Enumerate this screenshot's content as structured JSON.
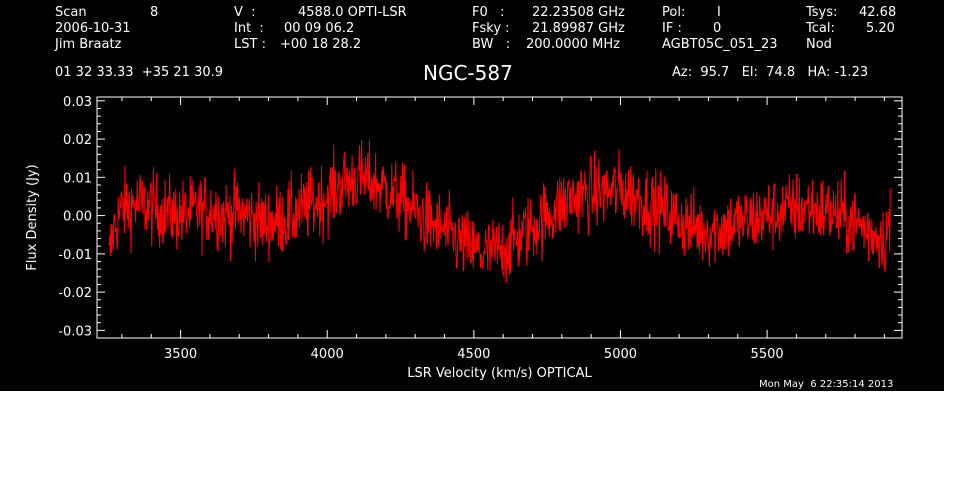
{
  "header": {
    "col1": {
      "scan_label": "Scan",
      "scan_value": "8",
      "date": "2006-10-31",
      "observer": "Jim Braatz"
    },
    "col2": {
      "v_label": "V  :",
      "v_value": "4588.0 OPTI-LSR",
      "int_label": "Int  :",
      "int_value": "00 09 06.2",
      "lst_label": "LST :",
      "lst_value": "+00 18 28.2"
    },
    "col3": {
      "f0_label": "F0   :",
      "f0_value": "22.23508 GHz",
      "fsky_label": "Fsky :",
      "fsky_value": "21.89987 GHz",
      "bw_label": "BW   :",
      "bw_value": "200.0000 MHz"
    },
    "col4": {
      "pol_label": "Pol:",
      "pol_value": "I",
      "if_label": "IF :",
      "if_value": "0",
      "project": "AGBT05C_051_23"
    },
    "col5": {
      "tsys_label": "Tsys:",
      "tsys_value": "42.68",
      "tcal_label": "Tcal:",
      "tcal_value": "5.20",
      "mode": "Nod"
    },
    "coords": "01 32 33.33  +35 21 30.9",
    "object": "NGC-587",
    "pointing": "Az:  95.7   El:  74.8   HA: -1.23"
  },
  "footer": {
    "timestamp": "Mon May  6 22:35:14 2013"
  },
  "colors": {
    "background": "#000000",
    "axes": "#ffffff",
    "trace": "#ff0000"
  },
  "chart_data": {
    "type": "line",
    "xlabel": "LSR Velocity (km/s) OPTICAL",
    "ylabel": "Flux Density (Jy)",
    "xlim": [
      3215,
      5960
    ],
    "ylim": [
      -0.032,
      0.031
    ],
    "xticks": [
      3500,
      4000,
      4500,
      5000,
      5500
    ],
    "yticks": [
      -0.03,
      -0.02,
      -0.01,
      0.0,
      0.01,
      0.02,
      0.03
    ],
    "ytick_labels": [
      "-0.03",
      "-0.02",
      "-0.01",
      "0.00",
      "0.01",
      "0.02",
      "0.03"
    ],
    "series": [
      {
        "x": [
          3255,
          3270,
          3300,
          3350,
          3400,
          3450,
          3500,
          3550,
          3600,
          3650,
          3700,
          3750,
          3800,
          3850,
          3900,
          3950,
          4000,
          4050,
          4100,
          4150,
          4200,
          4250,
          4300,
          4350,
          4400,
          4450,
          4500,
          4550,
          4600,
          4650,
          4700,
          4750,
          4800,
          4850,
          4900,
          4950,
          5000,
          5050,
          5100,
          5150,
          5200,
          5250,
          5300,
          5350,
          5400,
          5450,
          5500,
          5550,
          5600,
          5650,
          5700,
          5750,
          5800,
          5850,
          5900,
          5920
        ],
        "y": [
          -0.012,
          -0.004,
          0.002,
          0.003,
          0.002,
          0.001,
          0.0,
          0.001,
          0.002,
          0.0,
          0.001,
          -0.001,
          -0.002,
          -0.001,
          0.001,
          0.003,
          0.005,
          0.008,
          0.01,
          0.009,
          0.007,
          0.004,
          0.001,
          -0.002,
          -0.004,
          -0.007,
          -0.009,
          -0.01,
          -0.009,
          -0.006,
          -0.003,
          0.0,
          0.003,
          0.005,
          0.006,
          0.006,
          0.007,
          0.005,
          0.003,
          0.001,
          -0.001,
          -0.003,
          -0.004,
          -0.003,
          -0.002,
          -0.001,
          0.0,
          0.001,
          0.002,
          0.002,
          0.001,
          0.0,
          -0.002,
          -0.004,
          -0.006,
          -0.002
        ]
      }
    ]
  }
}
